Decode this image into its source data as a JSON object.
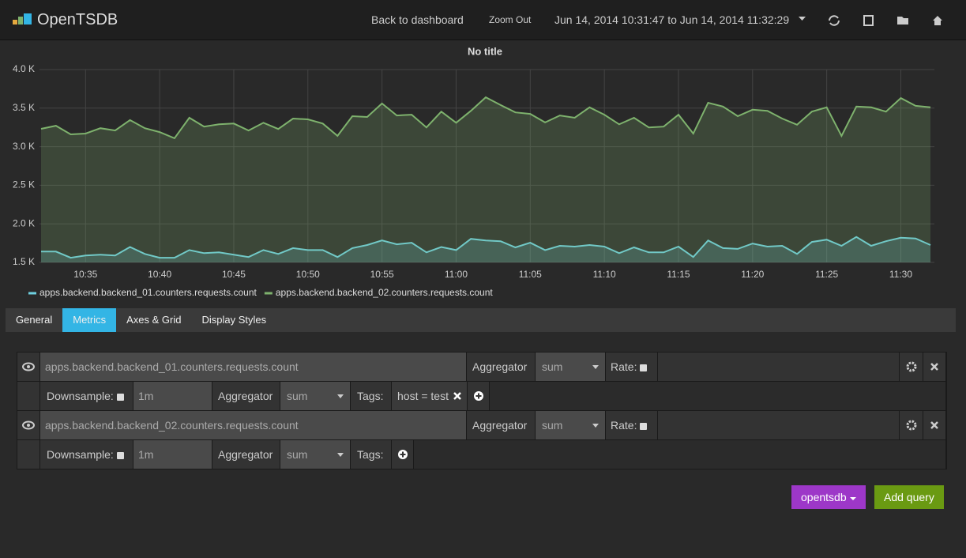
{
  "header": {
    "brand": "OpenTSDB",
    "back": "Back to dashboard",
    "zoom_out": "Zoom Out",
    "time_range": "Jun 14, 2014 10:31:47 to Jun 14, 2014 11:32:29"
  },
  "chart_data": {
    "type": "line",
    "title": "No title",
    "categories": [
      "10:32",
      "10:33",
      "10:34",
      "10:35",
      "10:36",
      "10:37",
      "10:38",
      "10:39",
      "10:40",
      "10:41",
      "10:42",
      "10:43",
      "10:44",
      "10:45",
      "10:46",
      "10:47",
      "10:48",
      "10:49",
      "10:50",
      "10:51",
      "10:52",
      "10:53",
      "10:54",
      "10:55",
      "10:56",
      "10:57",
      "10:58",
      "10:59",
      "11:00",
      "11:01",
      "11:02",
      "11:03",
      "11:04",
      "11:05",
      "11:06",
      "11:07",
      "11:08",
      "11:09",
      "11:10",
      "11:11",
      "11:12",
      "11:13",
      "11:14",
      "11:15",
      "11:16",
      "11:17",
      "11:18",
      "11:19",
      "11:20",
      "11:21",
      "11:22",
      "11:23",
      "11:24",
      "11:25",
      "11:26",
      "11:27",
      "11:28",
      "11:29",
      "11:30",
      "11:31",
      "11:32"
    ],
    "xticks": [
      "10:35",
      "10:40",
      "10:45",
      "10:50",
      "10:55",
      "11:00",
      "11:05",
      "11:10",
      "11:15",
      "11:20",
      "11:25",
      "11:30"
    ],
    "ylim": [
      1500,
      4000
    ],
    "yticks": [
      {
        "value": 1500,
        "label": "1.5 K"
      },
      {
        "value": 2000,
        "label": "2.0 K"
      },
      {
        "value": 2500,
        "label": "2.5 K"
      },
      {
        "value": 3000,
        "label": "3.0 K"
      },
      {
        "value": 3500,
        "label": "3.5 K"
      },
      {
        "value": 4000,
        "label": "4.0 K"
      }
    ],
    "grid": true,
    "fill": true,
    "series": [
      {
        "name": "apps.backend.backend_01.counters.requests.count",
        "color": "#6ed0e0",
        "values": [
          1640,
          1640,
          1560,
          1590,
          1600,
          1590,
          1700,
          1610,
          1560,
          1560,
          1660,
          1620,
          1630,
          1600,
          1570,
          1660,
          1610,
          1685,
          1660,
          1660,
          1570,
          1685,
          1725,
          1785,
          1735,
          1755,
          1630,
          1700,
          1660,
          1805,
          1785,
          1775,
          1695,
          1755,
          1660,
          1715,
          1705,
          1725,
          1705,
          1620,
          1695,
          1630,
          1630,
          1705,
          1570,
          1785,
          1685,
          1675,
          1745,
          1705,
          1715,
          1610,
          1765,
          1795,
          1715,
          1830,
          1715,
          1775,
          1820,
          1810,
          1725
        ]
      },
      {
        "name": "apps.backend.backend_02.counters.requests.count",
        "color": "#7eb26d",
        "values": [
          3232,
          3272,
          3160,
          3170,
          3240,
          3210,
          3345,
          3240,
          3190,
          3110,
          3375,
          3260,
          3290,
          3300,
          3210,
          3310,
          3230,
          3365,
          3355,
          3300,
          3140,
          3395,
          3385,
          3560,
          3405,
          3415,
          3250,
          3455,
          3310,
          3465,
          3640,
          3540,
          3445,
          3425,
          3315,
          3405,
          3375,
          3510,
          3415,
          3290,
          3375,
          3250,
          3260,
          3415,
          3170,
          3570,
          3520,
          3395,
          3480,
          3465,
          3365,
          3285,
          3455,
          3510,
          3140,
          3520,
          3510,
          3455,
          3630,
          3530,
          3510
        ]
      }
    ]
  },
  "tabs": [
    "General",
    "Metrics",
    "Axes & Grid",
    "Display Styles"
  ],
  "active_tab": 1,
  "queries": [
    {
      "metric": "apps.backend.backend_01.counters.requests.count",
      "aggregator_label": "Aggregator",
      "aggregator": "sum",
      "rate_label": "Rate:",
      "downsample_label": "Downsample:",
      "downsample": "1m",
      "ds_aggregator_label": "Aggregator",
      "ds_aggregator": "sum",
      "tags_label": "Tags:",
      "tags": [
        "host = test"
      ]
    },
    {
      "metric": "apps.backend.backend_02.counters.requests.count",
      "aggregator_label": "Aggregator",
      "aggregator": "sum",
      "rate_label": "Rate:",
      "downsample_label": "Downsample:",
      "downsample": "1m",
      "ds_aggregator_label": "Aggregator",
      "ds_aggregator": "sum",
      "tags_label": "Tags:",
      "tags": []
    }
  ],
  "buttons": {
    "datasource": "opentsdb",
    "add_query": "Add query"
  }
}
